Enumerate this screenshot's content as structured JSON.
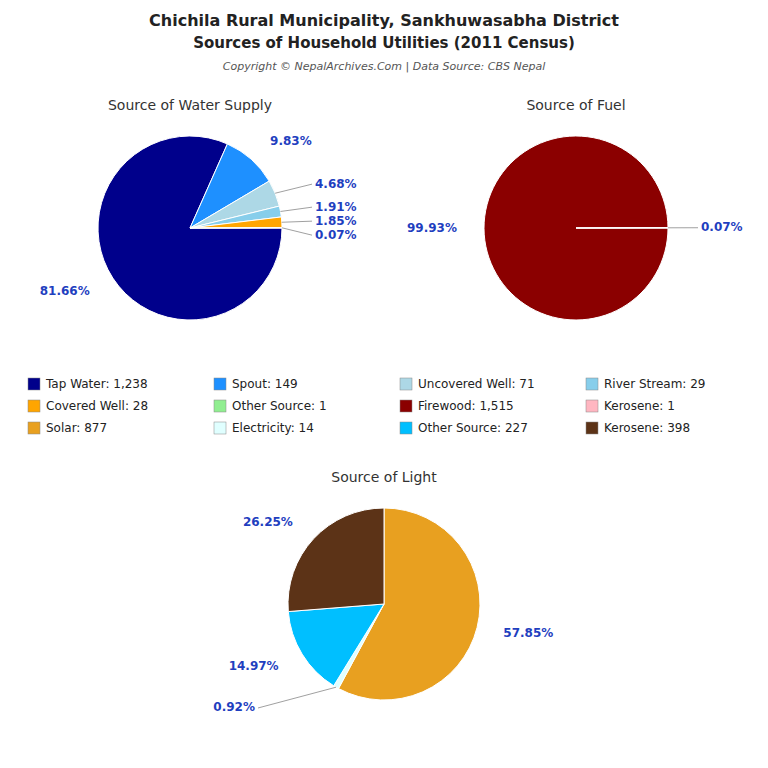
{
  "title": "Chichila Rural Municipality, Sankhuwasabha District",
  "subtitle": "Sources of Household Utilities (2011 Census)",
  "annotations": [
    "Copyright © NepalArchives.Com | Data Source: CBS Nepal"
  ],
  "chart_data": [
    {
      "type": "pie",
      "title": "Source of Water Supply",
      "categories": [
        "Tap Water: 1,238",
        "Spout: 149",
        "Uncovered Well: 71",
        "River Stream: 29",
        "Covered Well: 28",
        "Other Source: 1"
      ],
      "values": [
        81.66,
        9.83,
        4.68,
        1.91,
        1.85,
        0.07
      ],
      "value_labels": [
        "81.66%",
        "9.83%",
        "4.68%",
        "1.91%",
        "1.85%",
        "0.07%"
      ],
      "colors": [
        "#00008B",
        "#1E90FF",
        "#ADD8E6",
        "#87CEEB",
        "#FFA500",
        "#90EE90"
      ],
      "data_labels": true,
      "legend": "bottom"
    },
    {
      "type": "pie",
      "title": "Source of Fuel",
      "categories": [
        "Firewood: 1,515",
        "Kerosene: 1"
      ],
      "values": [
        99.93,
        0.07
      ],
      "value_labels": [
        "99.93%",
        "0.07%"
      ],
      "colors": [
        "#8B0000",
        "#FFB6C1"
      ],
      "data_labels": true,
      "legend": "bottom"
    },
    {
      "type": "pie",
      "title": "Source of Light",
      "categories": [
        "Solar: 877",
        "Electricity: 14",
        "Other Source: 227",
        "Kerosene: 398"
      ],
      "values": [
        57.85,
        0.92,
        14.97,
        26.25
      ],
      "value_labels": [
        "57.85%",
        "0.92%",
        "14.97%",
        "26.25%"
      ],
      "colors": [
        "#E8A020",
        "#E0FFFF",
        "#00BFFF",
        "#5C3317"
      ],
      "data_labels": true,
      "legend": "bottom"
    }
  ]
}
